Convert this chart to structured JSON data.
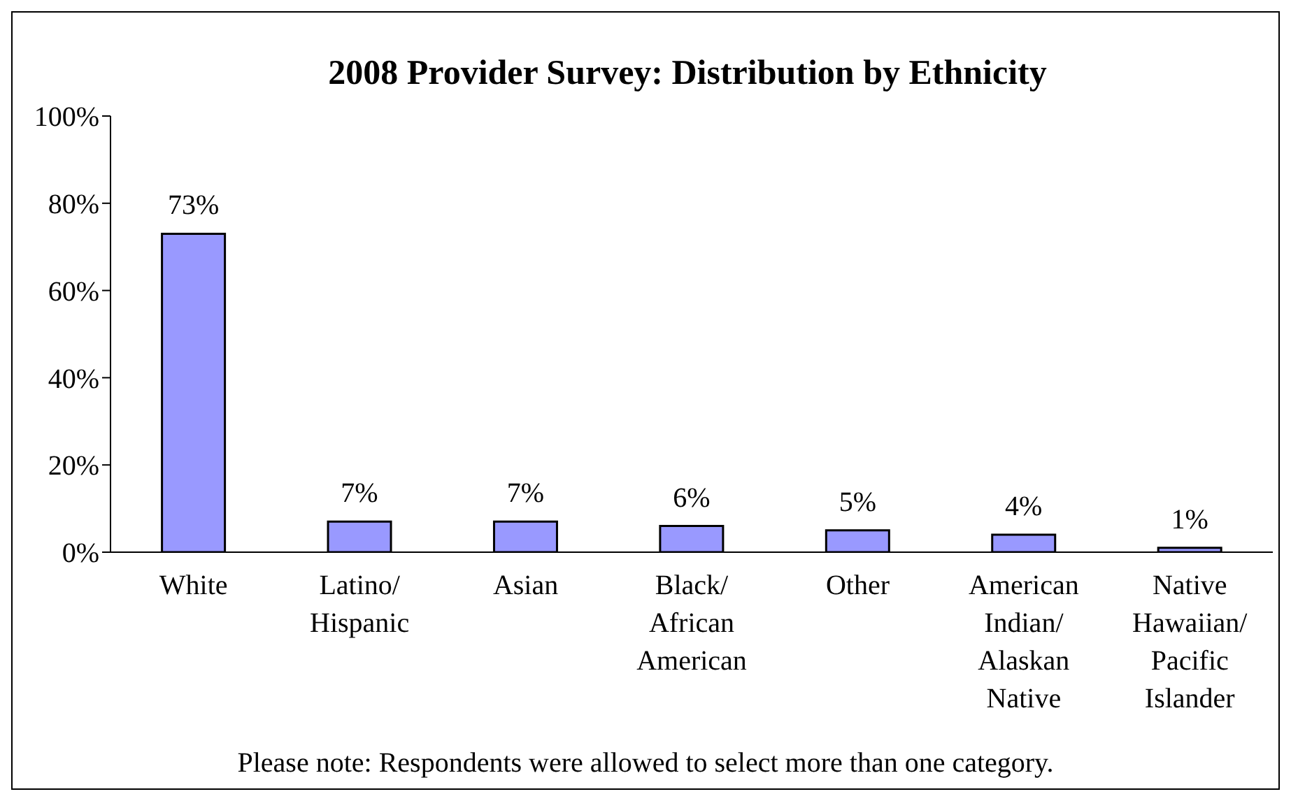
{
  "chart_data": {
    "type": "bar",
    "title": "2008 Provider Survey: Distribution by Ethnicity",
    "categories": [
      "White",
      "Latino/ Hispanic",
      "Asian",
      "Black/ African American",
      "Other",
      "American Indian/ Alaskan Native",
      "Native Hawaiian/ Pacific Islander"
    ],
    "values": [
      73,
      7,
      7,
      6,
      5,
      4,
      1
    ],
    "value_labels": [
      "73%",
      "7%",
      "7%",
      "6%",
      "5%",
      "4%",
      "1%"
    ],
    "color": "#9999ff",
    "ylim": [
      0,
      100
    ],
    "yticks": [
      {
        "value": 0,
        "label": "0%"
      },
      {
        "value": 20,
        "label": "20%"
      },
      {
        "value": 40,
        "label": "40%"
      },
      {
        "value": 60,
        "label": "60%"
      },
      {
        "value": 80,
        "label": "80%"
      },
      {
        "value": 100,
        "label": "100%"
      }
    ],
    "grid": false,
    "legend": false,
    "annotations": [
      "Please note: Respondents were allowed to select more than one category."
    ]
  }
}
